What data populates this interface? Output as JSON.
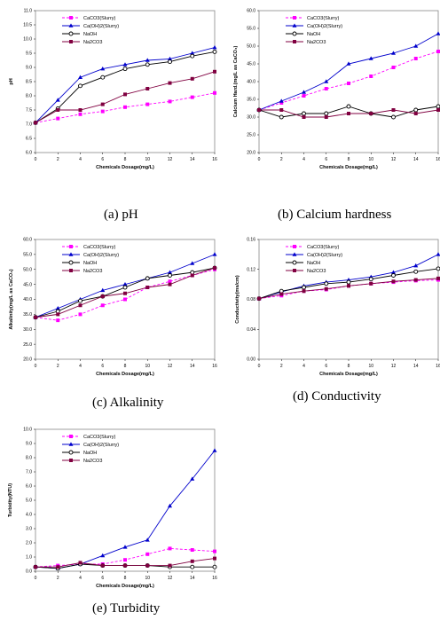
{
  "colors": {
    "CaCO3": "#ff00ff",
    "CaOH2": "#0000cc",
    "NaOH": "#000000",
    "Na2CO3": "#800040",
    "frame": "#888888"
  },
  "legend_names": [
    "CaCO3(Slurry)",
    "Ca(OH)2(Slurry)",
    "NaOH",
    "Na2CO3"
  ],
  "chart_data": [
    {
      "type": "line",
      "caption": "(a)  pH",
      "xlabel": "Chemicals Dosage(mg/L)",
      "ylabel": "pH",
      "x": [
        0,
        2,
        4,
        6,
        8,
        10,
        12,
        14,
        16
      ],
      "xticks": [
        "0",
        "2",
        "4",
        "6",
        "8",
        "10",
        "12",
        "14",
        "16"
      ],
      "xlim": [
        0,
        16
      ],
      "ylim": [
        6.0,
        11.0
      ],
      "yticks": [
        "6.0",
        "6.5",
        "7.0",
        "7.5",
        "8.0",
        "8.5",
        "9.0",
        "9.5",
        "10.0",
        "10.5",
        "11.0"
      ],
      "legend": "top-left",
      "series": [
        {
          "name": "CaCO3(Slurry)",
          "values": [
            7.05,
            7.2,
            7.35,
            7.45,
            7.6,
            7.7,
            7.8,
            7.95,
            8.1
          ]
        },
        {
          "name": "Ca(OH)2(Slurry)",
          "values": [
            7.05,
            7.85,
            8.65,
            8.95,
            9.1,
            9.25,
            9.3,
            9.5,
            9.7
          ]
        },
        {
          "name": "NaOH",
          "values": [
            7.05,
            7.55,
            8.35,
            8.65,
            8.95,
            9.1,
            9.2,
            9.4,
            9.55
          ]
        },
        {
          "name": "Na2CO3",
          "values": [
            7.05,
            7.5,
            7.5,
            7.7,
            8.05,
            8.25,
            8.45,
            8.6,
            8.85
          ]
        }
      ]
    },
    {
      "type": "line",
      "caption": "(b)  Calcium hardness",
      "xlabel": "Chemicals Dosage(mg/L)",
      "ylabel": "Calcium Hard.(mg/L as CaCO₃)",
      "x": [
        0,
        2,
        4,
        6,
        8,
        10,
        12,
        14,
        16
      ],
      "xticks": [
        "0",
        "2",
        "4",
        "6",
        "8",
        "10",
        "12",
        "14",
        "16"
      ],
      "xlim": [
        0,
        16
      ],
      "ylim": [
        20.0,
        60.0
      ],
      "yticks": [
        "20.0",
        "25.0",
        "30.0",
        "35.0",
        "40.0",
        "45.0",
        "50.0",
        "55.0",
        "60.0"
      ],
      "legend": "top-left",
      "series": [
        {
          "name": "CaCO3(Slurry)",
          "values": [
            32,
            34,
            36,
            38,
            39.5,
            41.5,
            44,
            46.5,
            48.5
          ]
        },
        {
          "name": "Ca(OH)2(Slurry)",
          "values": [
            32,
            34.5,
            37,
            40,
            45,
            46.5,
            48,
            50,
            53.5
          ]
        },
        {
          "name": "NaOH",
          "values": [
            32,
            30,
            31,
            31,
            33,
            31,
            30,
            32,
            33
          ]
        },
        {
          "name": "Na2CO3",
          "values": [
            32,
            32,
            30,
            30,
            31,
            31,
            32,
            31,
            32
          ]
        }
      ]
    },
    {
      "type": "line",
      "caption": "(c)  Alkalinity",
      "xlabel": "Chemicals Dosage(mg/L)",
      "ylabel": "Alkalinity(mg/L as CaCO₃)",
      "x": [
        0,
        2,
        4,
        6,
        8,
        10,
        12,
        14,
        16
      ],
      "xticks": [
        "0",
        "2",
        "4",
        "6",
        "8",
        "10",
        "12",
        "14",
        "16"
      ],
      "xlim": [
        0,
        16
      ],
      "ylim": [
        20.0,
        60.0
      ],
      "yticks": [
        "20.0",
        "25.0",
        "30.0",
        "35.0",
        "40.0",
        "45.0",
        "50.0",
        "55.0",
        "60.0"
      ],
      "legend": "top-left",
      "series": [
        {
          "name": "CaCO3(Slurry)",
          "values": [
            34,
            33,
            35,
            38,
            40,
            44,
            46,
            48,
            50
          ]
        },
        {
          "name": "Ca(OH)2(Slurry)",
          "values": [
            34,
            37,
            40,
            43,
            45,
            47,
            49,
            52,
            55
          ]
        },
        {
          "name": "NaOH",
          "values": [
            34,
            36,
            39.5,
            41,
            44,
            47,
            48,
            49,
            50.5
          ]
        },
        {
          "name": "Na2CO3",
          "values": [
            34,
            35,
            38,
            41,
            42,
            44,
            45,
            48,
            50.5
          ]
        }
      ]
    },
    {
      "type": "line",
      "caption": "(d)  Conductivity",
      "xlabel": "Chemicals Dosage(mg/L)",
      "ylabel": "Conductivity(ms/cm)",
      "x": [
        0,
        2,
        4,
        6,
        8,
        10,
        12,
        14,
        16
      ],
      "xticks": [
        "0",
        "2",
        "4",
        "6",
        "8",
        "10",
        "12",
        "14",
        "16"
      ],
      "xlim": [
        0,
        16
      ],
      "ylim": [
        0,
        0.16
      ],
      "yticks": [
        "0.00",
        "0.04",
        "0.08",
        "0.12",
        "0.16"
      ],
      "legend": "top-left",
      "series": [
        {
          "name": "CaCO3(Slurry)",
          "values": [
            0.081,
            0.085,
            0.091,
            0.093,
            0.098,
            0.101,
            0.103,
            0.105,
            0.106
          ]
        },
        {
          "name": "Ca(OH)2(Slurry)",
          "values": [
            0.081,
            0.09,
            0.098,
            0.103,
            0.106,
            0.11,
            0.116,
            0.125,
            0.14
          ]
        },
        {
          "name": "NaOH",
          "values": [
            0.081,
            0.091,
            0.096,
            0.101,
            0.103,
            0.107,
            0.112,
            0.117,
            0.121
          ]
        },
        {
          "name": "Na2CO3",
          "values": [
            0.081,
            0.087,
            0.091,
            0.094,
            0.098,
            0.101,
            0.104,
            0.106,
            0.108
          ]
        }
      ]
    },
    {
      "type": "line",
      "caption": "(e)  Turbidity",
      "xlabel": "Chemicals Dosage(mg/L)",
      "ylabel": "Turbidity(NTU)",
      "x": [
        0,
        2,
        4,
        6,
        8,
        10,
        12,
        14,
        16
      ],
      "xticks": [
        "0",
        "2",
        "4",
        "6",
        "8",
        "10",
        "12",
        "14",
        "16"
      ],
      "xlim": [
        0,
        16
      ],
      "ylim": [
        0,
        10.0
      ],
      "yticks": [
        "0.0",
        "1.0",
        "2.0",
        "3.0",
        "4.0",
        "5.0",
        "6.0",
        "7.0",
        "8.0",
        "9.0",
        "10.0"
      ],
      "legend": "top-left",
      "series": [
        {
          "name": "CaCO3(Slurry)",
          "values": [
            0.3,
            0.4,
            0.5,
            0.5,
            0.8,
            1.2,
            1.6,
            1.5,
            1.4
          ]
        },
        {
          "name": "Ca(OH)2(Slurry)",
          "values": [
            0.3,
            0.2,
            0.5,
            1.1,
            1.7,
            2.2,
            4.6,
            6.5,
            8.5
          ]
        },
        {
          "name": "NaOH",
          "values": [
            0.3,
            0.2,
            0.5,
            0.4,
            0.4,
            0.4,
            0.3,
            0.3,
            0.3
          ]
        },
        {
          "name": "Na2CO3",
          "values": [
            0.3,
            0.3,
            0.6,
            0.4,
            0.4,
            0.4,
            0.4,
            0.7,
            0.9
          ]
        }
      ]
    }
  ]
}
